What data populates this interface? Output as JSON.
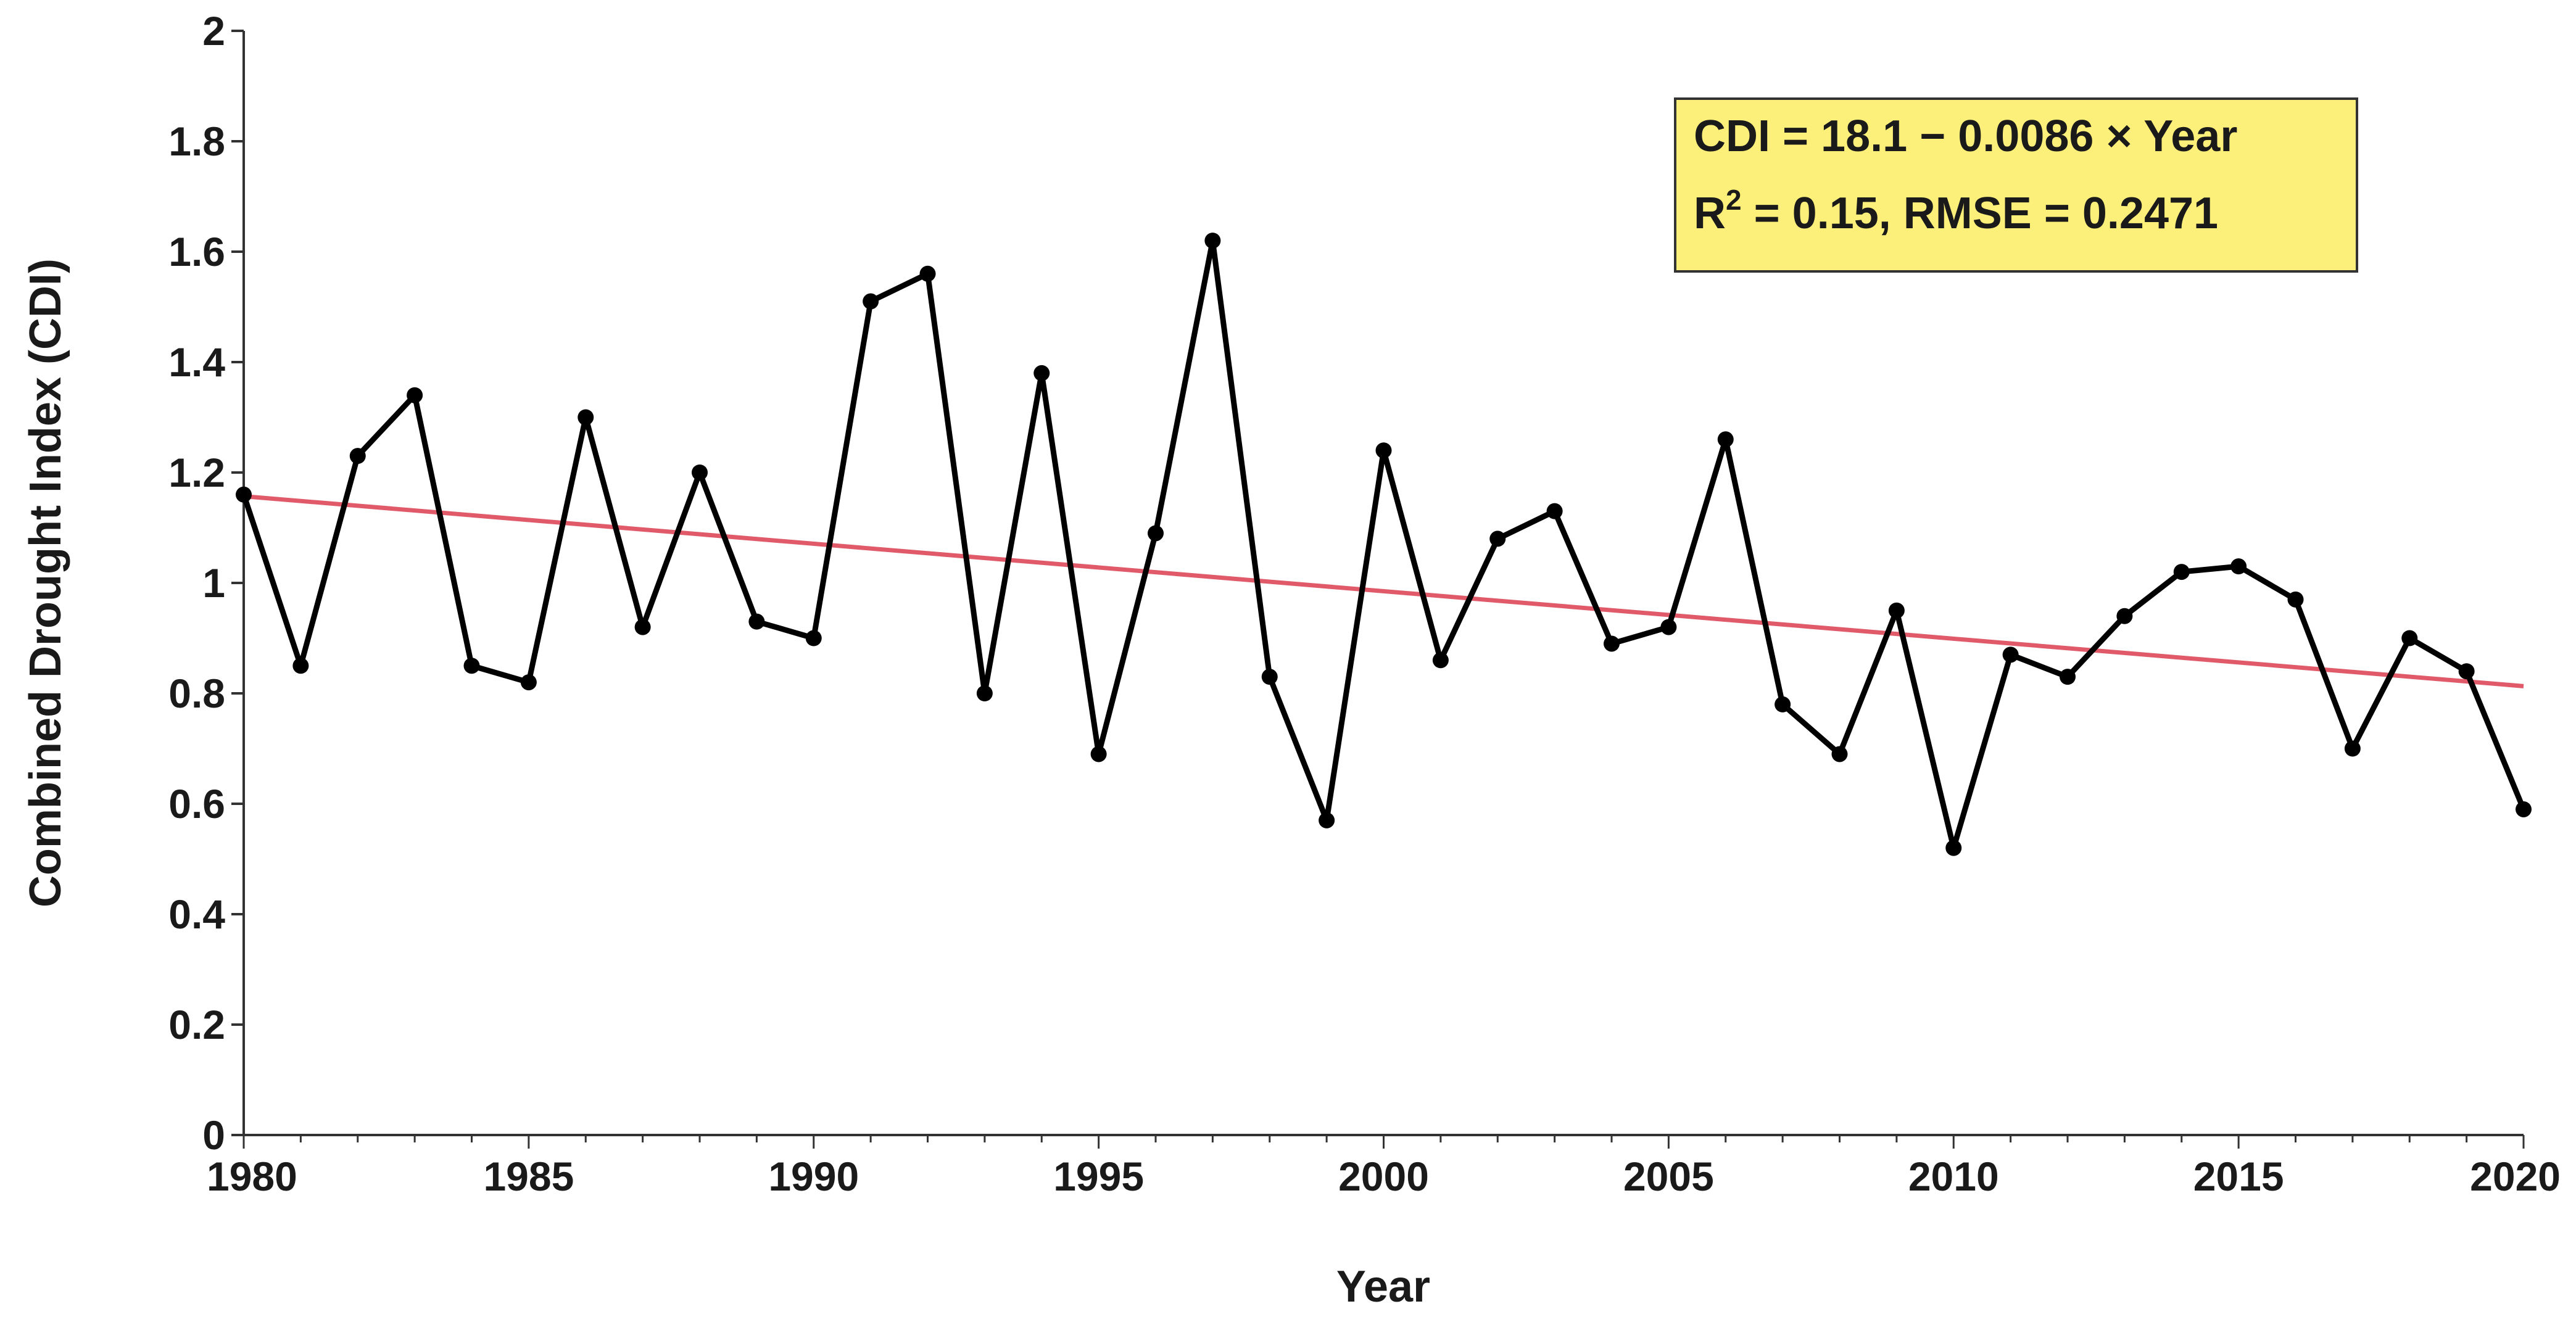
{
  "chart_data": {
    "type": "line",
    "xlabel": "Year",
    "ylabel": "Combined Drought Index (CDI)",
    "xlim": [
      1980,
      2020
    ],
    "ylim": [
      0,
      2
    ],
    "x_ticks": [
      1980,
      1985,
      1990,
      1995,
      2000,
      2005,
      2010,
      2015,
      2020
    ],
    "x_tick_labels": [
      "1980",
      "1985",
      "1990",
      "1995",
      "2000",
      "2005",
      "2010",
      "2015",
      "2020"
    ],
    "y_ticks": [
      0,
      0.2,
      0.4,
      0.6,
      0.8,
      1.0,
      1.2,
      1.4,
      1.6,
      1.8,
      2.0
    ],
    "y_tick_labels": [
      "0",
      "0.2",
      "0.4",
      "0.6",
      "0.8",
      "1",
      "1.2",
      "1.4",
      "1.6",
      "1.8",
      "2"
    ],
    "series": [
      {
        "name": "CDI",
        "color": "#000000",
        "x": [
          1980,
          1981,
          1982,
          1983,
          1984,
          1985,
          1986,
          1987,
          1988,
          1989,
          1990,
          1991,
          1992,
          1993,
          1994,
          1995,
          1996,
          1997,
          1998,
          1999,
          2000,
          2001,
          2002,
          2003,
          2004,
          2005,
          2006,
          2007,
          2008,
          2009,
          2010,
          2011,
          2012,
          2013,
          2014,
          2015,
          2016,
          2017,
          2018,
          2019,
          2020
        ],
        "values": [
          1.16,
          0.85,
          1.23,
          1.34,
          0.85,
          0.82,
          1.3,
          0.92,
          1.2,
          0.93,
          0.9,
          1.51,
          1.56,
          0.8,
          1.38,
          0.69,
          1.09,
          1.62,
          0.83,
          0.57,
          1.24,
          0.86,
          1.08,
          1.13,
          0.89,
          0.92,
          1.26,
          0.78,
          0.69,
          0.95,
          0.52,
          0.87,
          0.83,
          0.94,
          1.02,
          1.03,
          0.97,
          0.7,
          0.9,
          0.84,
          0.59
        ]
      },
      {
        "name": "Linear trend",
        "color": "#e05a6a",
        "x": [
          1980,
          2020
        ],
        "values": [
          1.157,
          0.813
        ]
      }
    ],
    "annotation": {
      "line1": "CDI = 18.1 − 0.0086 × Year",
      "line2_prefix": "R",
      "line2_sup": "2",
      "line2_rest": " = 0.15, RMSE = 0.2471",
      "background": "#fdf07a",
      "border": "#333333"
    }
  }
}
